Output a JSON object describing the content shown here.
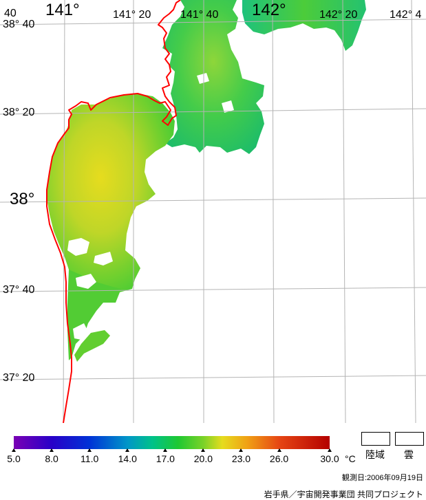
{
  "map": {
    "lon_labels": [
      "141°",
      "141° 20",
      "141° 40",
      "142°",
      "142° 20",
      "142° 4",
      "40"
    ],
    "lat_labels": [
      "38° 40",
      "38° 20",
      "38°",
      "37° 40",
      "37° 20"
    ],
    "colors": {
      "coastline": "#ff0000",
      "graticule": "#b4b4b4",
      "land": "#ffffff",
      "cloud": "#ffffff"
    }
  },
  "colorbar": {
    "tick_labels": [
      "5.0",
      "8.0",
      "11.0",
      "14.0",
      "17.0",
      "20.0",
      "23.0",
      "26.0",
      "30.0"
    ],
    "unit": "°C",
    "min": 5.0,
    "max": 30.0
  },
  "legend": {
    "land_label": "陸域",
    "cloud_label": "雲"
  },
  "footer": {
    "observation_date": "観測日:2006年09月19日",
    "credit": "岩手県／宇宙開発事業団 共同プロジェクト"
  }
}
